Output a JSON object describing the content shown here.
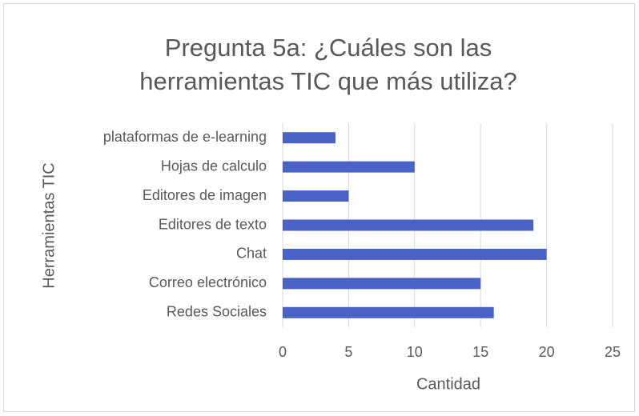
{
  "chart_data": {
    "type": "bar",
    "orientation": "horizontal",
    "title": [
      "Pregunta 5a:  ¿Cuáles son las",
      "herramientas TIC que más utiliza?"
    ],
    "x_label": "Cantidad",
    "y_label": "Herramientas TIC",
    "categories": [
      "plataformas de e-learning",
      "Hojas de calculo",
      "Editores de imagen",
      "Editores de texto",
      "Chat",
      "Correo electrónico",
      "Redes Sociales"
    ],
    "values": [
      4,
      10,
      5,
      19,
      20,
      15,
      16
    ],
    "color": "#4a62c6",
    "xlim": [
      0,
      25
    ],
    "xticks": [
      0,
      5,
      10,
      15,
      20,
      25
    ],
    "grid": true
  }
}
